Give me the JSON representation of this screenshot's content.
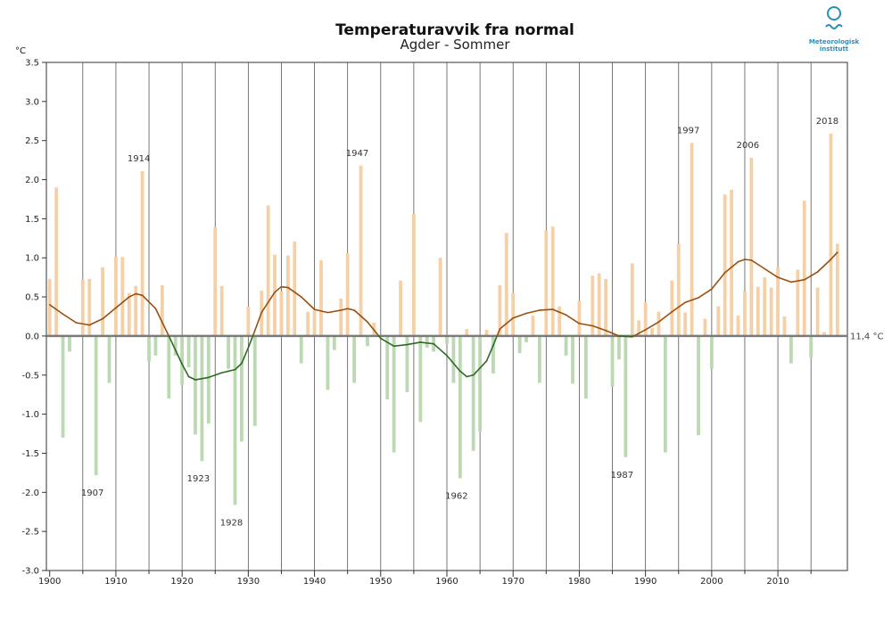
{
  "logo": {
    "line1": "Meteorologisk",
    "line2": "institutt"
  },
  "chart_data": {
    "type": "bar",
    "title": "Temperaturavvik fra normal",
    "subtitle": "Agder - Sommer",
    "ylabel": "°C",
    "ylim": [
      -3.0,
      3.5
    ],
    "xlim": [
      1899.5,
      2020.5
    ],
    "yticks": [
      "-3.0",
      "-2.5",
      "-2.0",
      "-1.5",
      "-1.0",
      "-0.5",
      "0.0",
      "0.5",
      "1.0",
      "1.5",
      "2.0",
      "2.5",
      "3.0",
      "3.5"
    ],
    "xticks": [
      "1900",
      "1910",
      "1920",
      "1930",
      "1940",
      "1950",
      "1960",
      "1970",
      "1980",
      "1990",
      "2000",
      "2010"
    ],
    "normal_label": "11,4 °C",
    "colors": {
      "positive": "#f5d0a6",
      "negative": "#bcd9b3",
      "curve_pos": "#9b4f0f",
      "curve_neg": "#2e6b22",
      "zero": "#7a7a7a",
      "grid": "#555555"
    },
    "years": [
      1900,
      1901,
      1902,
      1903,
      1904,
      1905,
      1906,
      1907,
      1908,
      1909,
      1910,
      1911,
      1912,
      1913,
      1914,
      1915,
      1916,
      1917,
      1918,
      1919,
      1920,
      1921,
      1922,
      1923,
      1924,
      1925,
      1926,
      1927,
      1928,
      1929,
      1930,
      1931,
      1932,
      1933,
      1934,
      1935,
      1936,
      1937,
      1938,
      1939,
      1940,
      1941,
      1942,
      1943,
      1944,
      1945,
      1946,
      1947,
      1948,
      1949,
      1950,
      1951,
      1952,
      1953,
      1954,
      1955,
      1956,
      1957,
      1958,
      1959,
      1960,
      1961,
      1962,
      1963,
      1964,
      1965,
      1966,
      1967,
      1968,
      1969,
      1970,
      1971,
      1972,
      1973,
      1974,
      1975,
      1976,
      1977,
      1978,
      1979,
      1980,
      1981,
      1982,
      1983,
      1984,
      1985,
      1986,
      1987,
      1988,
      1989,
      1990,
      1991,
      1992,
      1993,
      1994,
      1995,
      1996,
      1997,
      1998,
      1999,
      2000,
      2001,
      2002,
      2003,
      2004,
      2005,
      2006,
      2007,
      2008,
      2009,
      2010,
      2011,
      2012,
      2013,
      2014,
      2015,
      2016,
      2017,
      2018,
      2019
    ],
    "values": [
      0.73,
      1.9,
      -1.3,
      -0.2,
      0.0,
      0.72,
      0.73,
      -1.78,
      0.88,
      -0.6,
      1.02,
      1.01,
      0.55,
      0.64,
      2.11,
      -0.33,
      -0.25,
      0.65,
      -0.8,
      -0.25,
      -0.62,
      -0.4,
      -1.26,
      -1.6,
      -1.12,
      1.39,
      0.64,
      -0.42,
      -2.16,
      -1.35,
      0.38,
      -1.15,
      0.58,
      1.67,
      1.04,
      0.57,
      1.03,
      1.21,
      -0.35,
      0.31,
      0.33,
      0.97,
      -0.69,
      -0.18,
      0.48,
      1.06,
      -0.6,
      2.18,
      -0.13,
      0.17,
      -0.02,
      -0.81,
      -1.49,
      0.71,
      -0.72,
      1.56,
      -1.1,
      -0.15,
      -0.2,
      1.0,
      -0.1,
      -0.6,
      -1.82,
      0.09,
      -1.47,
      -1.22,
      0.08,
      -0.48,
      0.65,
      1.32,
      0.55,
      -0.22,
      -0.08,
      0.26,
      -0.6,
      1.35,
      1.4,
      0.38,
      -0.25,
      -0.61,
      0.45,
      -0.8,
      0.77,
      0.8,
      0.73,
      -0.65,
      -0.3,
      -1.55,
      0.93,
      0.2,
      0.43,
      0.1,
      0.31,
      -1.49,
      0.71,
      1.18,
      0.3,
      2.47,
      -1.27,
      0.22,
      -0.42,
      0.38,
      1.81,
      1.87,
      0.26,
      0.57,
      2.28,
      0.63,
      0.75,
      0.62,
      0.88,
      0.25,
      -0.35,
      0.85,
      1.73,
      -0.28,
      0.62,
      0.05,
      2.59,
      1.18
    ],
    "trend": [
      [
        1900,
        0.4
      ],
      [
        1902,
        0.28
      ],
      [
        1904,
        0.17
      ],
      [
        1906,
        0.14
      ],
      [
        1908,
        0.22
      ],
      [
        1910,
        0.36
      ],
      [
        1912,
        0.5
      ],
      [
        1913,
        0.54
      ],
      [
        1914,
        0.52
      ],
      [
        1916,
        0.35
      ],
      [
        1918,
        0.0
      ],
      [
        1920,
        -0.36
      ],
      [
        1921,
        -0.52
      ],
      [
        1922,
        -0.56
      ],
      [
        1924,
        -0.53
      ],
      [
        1926,
        -0.47
      ],
      [
        1928,
        -0.43
      ],
      [
        1929,
        -0.35
      ],
      [
        1930,
        -0.15
      ],
      [
        1931,
        0.07
      ],
      [
        1932,
        0.3
      ],
      [
        1934,
        0.56
      ],
      [
        1935,
        0.63
      ],
      [
        1936,
        0.62
      ],
      [
        1938,
        0.5
      ],
      [
        1940,
        0.34
      ],
      [
        1942,
        0.3
      ],
      [
        1944,
        0.33
      ],
      [
        1945,
        0.35
      ],
      [
        1946,
        0.33
      ],
      [
        1948,
        0.18
      ],
      [
        1950,
        -0.03
      ],
      [
        1952,
        -0.13
      ],
      [
        1954,
        -0.11
      ],
      [
        1956,
        -0.08
      ],
      [
        1958,
        -0.1
      ],
      [
        1960,
        -0.25
      ],
      [
        1962,
        -0.45
      ],
      [
        1963,
        -0.52
      ],
      [
        1964,
        -0.5
      ],
      [
        1966,
        -0.32
      ],
      [
        1967,
        -0.12
      ],
      [
        1968,
        0.09
      ],
      [
        1970,
        0.23
      ],
      [
        1972,
        0.29
      ],
      [
        1974,
        0.33
      ],
      [
        1976,
        0.34
      ],
      [
        1978,
        0.27
      ],
      [
        1980,
        0.16
      ],
      [
        1982,
        0.13
      ],
      [
        1984,
        0.07
      ],
      [
        1986,
        0.0
      ],
      [
        1988,
        -0.01
      ],
      [
        1990,
        0.08
      ],
      [
        1992,
        0.18
      ],
      [
        1994,
        0.31
      ],
      [
        1996,
        0.43
      ],
      [
        1998,
        0.49
      ],
      [
        2000,
        0.6
      ],
      [
        2002,
        0.81
      ],
      [
        2004,
        0.95
      ],
      [
        2005,
        0.98
      ],
      [
        2006,
        0.97
      ],
      [
        2008,
        0.86
      ],
      [
        2010,
        0.75
      ],
      [
        2012,
        0.69
      ],
      [
        2014,
        0.72
      ],
      [
        2016,
        0.82
      ],
      [
        2018,
        0.98
      ],
      [
        2019,
        1.07
      ]
    ],
    "annotations": [
      {
        "year": 1907,
        "label": "1907"
      },
      {
        "year": 1914,
        "label": "1914"
      },
      {
        "year": 1923,
        "label": "1923"
      },
      {
        "year": 1928,
        "label": "1928"
      },
      {
        "year": 1947,
        "label": "1947"
      },
      {
        "year": 1962,
        "label": "1962"
      },
      {
        "year": 1987,
        "label": "1987"
      },
      {
        "year": 1997,
        "label": "1997"
      },
      {
        "year": 2006,
        "label": "2006"
      },
      {
        "year": 2018,
        "label": "2018"
      }
    ]
  }
}
